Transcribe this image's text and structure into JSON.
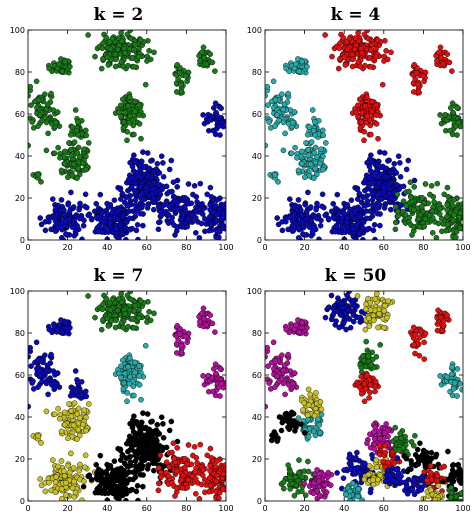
{
  "chart_data": [
    {
      "type": "scatter",
      "title": "k = 2",
      "xlim": [
        0,
        100
      ],
      "ylim": [
        0,
        100
      ],
      "xticks": [
        0,
        20,
        40,
        60,
        80,
        100
      ],
      "yticks": [
        0,
        20,
        40,
        60,
        80,
        100
      ],
      "xtick_labels": [
        "0",
        "20",
        "40",
        "60",
        "80",
        "100"
      ],
      "ytick_labels": [
        "0",
        "20",
        "40",
        "60",
        "80",
        "100"
      ],
      "grid": false,
      "clusters": [
        {
          "color": "#1a7a1a",
          "cx": 17,
          "cy": 82,
          "sx": 3,
          "sy": 2.5,
          "n": 40
        },
        {
          "color": "#1a7a1a",
          "cx": 48,
          "cy": 90,
          "sx": 6,
          "sy": 4,
          "n": 160
        },
        {
          "color": "#1a7a1a",
          "cx": 8,
          "cy": 60,
          "sx": 4,
          "sy": 5,
          "n": 70
        },
        {
          "color": "#1a7a1a",
          "cx": 22,
          "cy": 38,
          "sx": 4,
          "sy": 4,
          "n": 85
        },
        {
          "color": "#1a7a1a",
          "cx": 25,
          "cy": 52,
          "sx": 2.5,
          "sy": 3,
          "n": 25
        },
        {
          "color": "#1a7a1a",
          "cx": 52,
          "cy": 60,
          "sx": 3,
          "sy": 5,
          "n": 85
        },
        {
          "color": "#1a7a1a",
          "cx": 77,
          "cy": 77,
          "sx": 2,
          "sy": 4,
          "n": 30
        },
        {
          "color": "#1a7a1a",
          "cx": 89,
          "cy": 86,
          "sx": 2,
          "sy": 3,
          "n": 25
        },
        {
          "color": "#1a7a1a",
          "cx": 5,
          "cy": 30,
          "sx": 1.5,
          "sy": 1.5,
          "n": 8
        },
        {
          "color": "#0a0ab4",
          "cx": 95,
          "cy": 58,
          "sx": 3,
          "sy": 4,
          "n": 40
        },
        {
          "color": "#0a0ab4",
          "cx": 18,
          "cy": 10,
          "sx": 5,
          "sy": 4,
          "n": 120
        },
        {
          "color": "#0a0ab4",
          "cx": 60,
          "cy": 26,
          "sx": 5,
          "sy": 7,
          "n": 200
        },
        {
          "color": "#0a0ab4",
          "cx": 45,
          "cy": 10,
          "sx": 6,
          "sy": 5,
          "n": 150
        },
        {
          "color": "#0a0ab4",
          "cx": 78,
          "cy": 14,
          "sx": 6,
          "sy": 6,
          "n": 120
        },
        {
          "color": "#0a0ab4",
          "cx": 95,
          "cy": 12,
          "sx": 3,
          "sy": 6,
          "n": 80
        }
      ]
    },
    {
      "type": "scatter",
      "title": "k = 4",
      "xlim": [
        0,
        100
      ],
      "ylim": [
        0,
        100
      ],
      "xticks": [
        0,
        20,
        40,
        60,
        80,
        100
      ],
      "yticks": [
        0,
        20,
        40,
        60,
        80,
        100
      ],
      "xtick_labels": [
        "0",
        "20",
        "40",
        "60",
        "80",
        "100"
      ],
      "ytick_labels": [
        "0",
        "20",
        "40",
        "60",
        "80",
        "100"
      ],
      "grid": false,
      "clusters": [
        {
          "color": "#2aa8a8",
          "cx": 17,
          "cy": 82,
          "sx": 3,
          "sy": 2.5,
          "n": 40
        },
        {
          "color": "#e01010",
          "cx": 48,
          "cy": 90,
          "sx": 6,
          "sy": 4,
          "n": 160
        },
        {
          "color": "#2aa8a8",
          "cx": 8,
          "cy": 60,
          "sx": 4,
          "sy": 5,
          "n": 70
        },
        {
          "color": "#2aa8a8",
          "cx": 22,
          "cy": 38,
          "sx": 4,
          "sy": 4,
          "n": 85
        },
        {
          "color": "#2aa8a8",
          "cx": 25,
          "cy": 52,
          "sx": 2.5,
          "sy": 3,
          "n": 25
        },
        {
          "color": "#e01010",
          "cx": 52,
          "cy": 60,
          "sx": 3,
          "sy": 5,
          "n": 85
        },
        {
          "color": "#e01010",
          "cx": 77,
          "cy": 77,
          "sx": 2,
          "sy": 4,
          "n": 30
        },
        {
          "color": "#e01010",
          "cx": 89,
          "cy": 86,
          "sx": 2,
          "sy": 3,
          "n": 25
        },
        {
          "color": "#2aa8a8",
          "cx": 5,
          "cy": 30,
          "sx": 1.5,
          "sy": 1.5,
          "n": 8
        },
        {
          "color": "#1a7a1a",
          "cx": 95,
          "cy": 58,
          "sx": 3,
          "sy": 4,
          "n": 40
        },
        {
          "color": "#0a0ab4",
          "cx": 18,
          "cy": 10,
          "sx": 5,
          "sy": 4,
          "n": 120
        },
        {
          "color": "#0a0ab4",
          "cx": 60,
          "cy": 26,
          "sx": 5,
          "sy": 7,
          "n": 200
        },
        {
          "color": "#0a0ab4",
          "cx": 45,
          "cy": 10,
          "sx": 6,
          "sy": 5,
          "n": 150
        },
        {
          "color": "#1a7a1a",
          "cx": 78,
          "cy": 14,
          "sx": 6,
          "sy": 6,
          "n": 120
        },
        {
          "color": "#1a7a1a",
          "cx": 95,
          "cy": 12,
          "sx": 3,
          "sy": 6,
          "n": 80
        }
      ]
    },
    {
      "type": "scatter",
      "title": "k = 7",
      "xlim": [
        0,
        100
      ],
      "ylim": [
        0,
        100
      ],
      "xticks": [
        0,
        20,
        40,
        60,
        80,
        100
      ],
      "yticks": [
        0,
        20,
        40,
        60,
        80,
        100
      ],
      "xtick_labels": [
        "0",
        "20",
        "40",
        "60",
        "80",
        "100"
      ],
      "ytick_labels": [
        "0",
        "20",
        "40",
        "60",
        "80",
        "100"
      ],
      "grid": false,
      "clusters": [
        {
          "color": "#0a0ab4",
          "cx": 17,
          "cy": 82,
          "sx": 3,
          "sy": 2.5,
          "n": 40
        },
        {
          "color": "#1a7a1a",
          "cx": 48,
          "cy": 90,
          "sx": 6,
          "sy": 4,
          "n": 160
        },
        {
          "color": "#0a0ab4",
          "cx": 8,
          "cy": 60,
          "sx": 4,
          "sy": 5,
          "n": 70
        },
        {
          "color": "#c8c028",
          "cx": 22,
          "cy": 38,
          "sx": 4,
          "sy": 4,
          "n": 85
        },
        {
          "color": "#0a0ab4",
          "cx": 25,
          "cy": 52,
          "sx": 2.5,
          "sy": 3,
          "n": 25
        },
        {
          "color": "#2aa8a8",
          "cx": 52,
          "cy": 60,
          "sx": 3,
          "sy": 5,
          "n": 85
        },
        {
          "color": "#b0109a",
          "cx": 77,
          "cy": 77,
          "sx": 2,
          "sy": 4,
          "n": 30
        },
        {
          "color": "#b0109a",
          "cx": 89,
          "cy": 86,
          "sx": 2,
          "sy": 3,
          "n": 25
        },
        {
          "color": "#c8c028",
          "cx": 5,
          "cy": 30,
          "sx": 1.5,
          "sy": 1.5,
          "n": 8
        },
        {
          "color": "#b0109a",
          "cx": 95,
          "cy": 58,
          "sx": 3,
          "sy": 4,
          "n": 40
        },
        {
          "color": "#c8c028",
          "cx": 18,
          "cy": 10,
          "sx": 5,
          "sy": 4,
          "n": 120
        },
        {
          "color": "#000000",
          "cx": 60,
          "cy": 26,
          "sx": 5,
          "sy": 7,
          "n": 200
        },
        {
          "color": "#000000",
          "cx": 45,
          "cy": 10,
          "sx": 6,
          "sy": 5,
          "n": 150
        },
        {
          "color": "#e01010",
          "cx": 78,
          "cy": 14,
          "sx": 6,
          "sy": 6,
          "n": 120
        },
        {
          "color": "#e01010",
          "cx": 95,
          "cy": 12,
          "sx": 3,
          "sy": 6,
          "n": 80
        }
      ]
    },
    {
      "type": "scatter",
      "title": "k = 50",
      "xlim": [
        0,
        100
      ],
      "ylim": [
        0,
        100
      ],
      "xticks": [
        0,
        20,
        40,
        60,
        80,
        100
      ],
      "yticks": [
        0,
        20,
        40,
        60,
        80,
        100
      ],
      "xtick_labels": [
        "0",
        "20",
        "40",
        "60",
        "80",
        "100"
      ],
      "ytick_labels": [
        "0",
        "20",
        "40",
        "60",
        "80",
        "100"
      ],
      "grid": false,
      "clusters": [
        {
          "color": "#b0109a",
          "cx": 17,
          "cy": 82,
          "sx": 3,
          "sy": 2.5,
          "n": 40
        },
        {
          "color": "#0a0ab4",
          "cx": 40,
          "cy": 90,
          "sx": 4,
          "sy": 4,
          "n": 90
        },
        {
          "color": "#c8c028",
          "cx": 57,
          "cy": 90,
          "sx": 3.5,
          "sy": 4,
          "n": 70
        },
        {
          "color": "#b0109a",
          "cx": 8,
          "cy": 60,
          "sx": 4,
          "sy": 5,
          "n": 70
        },
        {
          "color": "#2aa8a8",
          "cx": 22,
          "cy": 35,
          "sx": 3,
          "sy": 3,
          "n": 50
        },
        {
          "color": "#c8c028",
          "cx": 23,
          "cy": 47,
          "sx": 3,
          "sy": 3,
          "n": 40
        },
        {
          "color": "#1a7a1a",
          "cx": 52,
          "cy": 66,
          "sx": 2.5,
          "sy": 3,
          "n": 40
        },
        {
          "color": "#e01010",
          "cx": 52,
          "cy": 55,
          "sx": 2.5,
          "sy": 3,
          "n": 45
        },
        {
          "color": "#e01010",
          "cx": 77,
          "cy": 77,
          "sx": 2,
          "sy": 4,
          "n": 30
        },
        {
          "color": "#e01010",
          "cx": 89,
          "cy": 86,
          "sx": 2,
          "sy": 3,
          "n": 25
        },
        {
          "color": "#000000",
          "cx": 5,
          "cy": 30,
          "sx": 1.5,
          "sy": 1.5,
          "n": 8
        },
        {
          "color": "#000000",
          "cx": 12,
          "cy": 38,
          "sx": 3,
          "sy": 3,
          "n": 35
        },
        {
          "color": "#2aa8a8",
          "cx": 95,
          "cy": 58,
          "sx": 3,
          "sy": 4,
          "n": 40
        },
        {
          "color": "#1a7a1a",
          "cx": 15,
          "cy": 10,
          "sx": 3,
          "sy": 3,
          "n": 60
        },
        {
          "color": "#b0109a",
          "cx": 27,
          "cy": 8,
          "sx": 3,
          "sy": 3,
          "n": 50
        },
        {
          "color": "#0a0ab4",
          "cx": 48,
          "cy": 14,
          "sx": 4,
          "sy": 4,
          "n": 70
        },
        {
          "color": "#2aa8a8",
          "cx": 44,
          "cy": 4,
          "sx": 3,
          "sy": 2,
          "n": 30
        },
        {
          "color": "#c8c028",
          "cx": 58,
          "cy": 14,
          "sx": 3,
          "sy": 4,
          "n": 50
        },
        {
          "color": "#b0109a",
          "cx": 60,
          "cy": 30,
          "sx": 3,
          "sy": 4,
          "n": 50
        },
        {
          "color": "#e01010",
          "cx": 63,
          "cy": 22,
          "sx": 3,
          "sy": 3,
          "n": 40
        },
        {
          "color": "#0a0ab4",
          "cx": 66,
          "cy": 12,
          "sx": 3,
          "sy": 3,
          "n": 40
        },
        {
          "color": "#1a7a1a",
          "cx": 70,
          "cy": 28,
          "sx": 3,
          "sy": 3,
          "n": 35
        },
        {
          "color": "#000000",
          "cx": 80,
          "cy": 20,
          "sx": 4,
          "sy": 4,
          "n": 50
        },
        {
          "color": "#0a0ab4",
          "cx": 77,
          "cy": 8,
          "sx": 3,
          "sy": 3,
          "n": 40
        },
        {
          "color": "#e01010",
          "cx": 86,
          "cy": 10,
          "sx": 3,
          "sy": 3,
          "n": 35
        },
        {
          "color": "#c8c028",
          "cx": 86,
          "cy": 3,
          "sx": 3,
          "sy": 2,
          "n": 25
        },
        {
          "color": "#000000",
          "cx": 96,
          "cy": 12,
          "sx": 2.5,
          "sy": 4,
          "n": 40
        },
        {
          "color": "#1a7a1a",
          "cx": 96,
          "cy": 2,
          "sx": 2,
          "sy": 2,
          "n": 25
        }
      ]
    }
  ]
}
